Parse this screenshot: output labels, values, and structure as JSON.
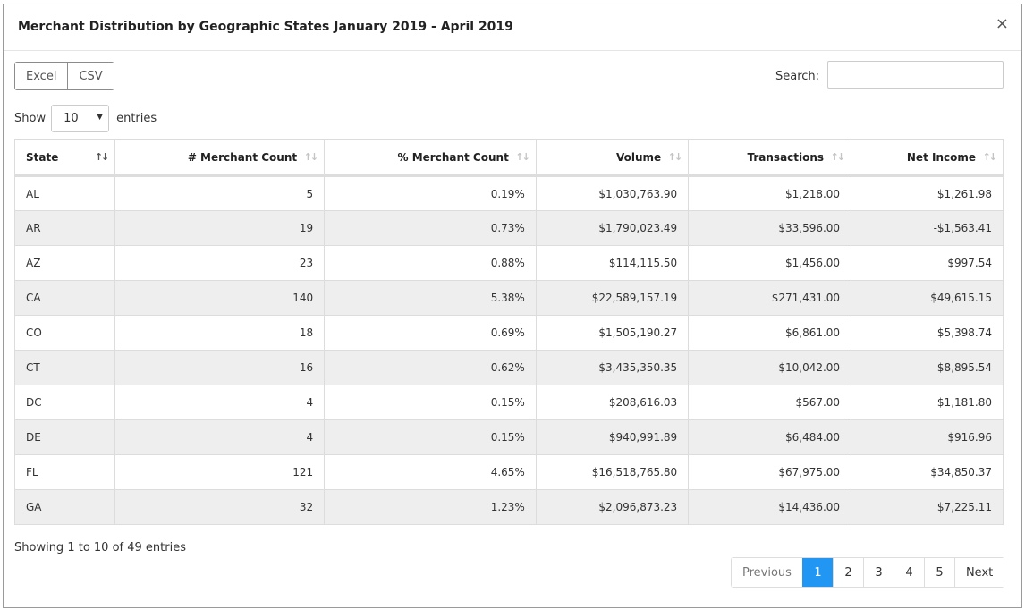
{
  "modal": {
    "title": "Merchant Distribution by Geographic States January 2019 - April 2019",
    "close_symbol": "×"
  },
  "toolbar": {
    "excel_label": "Excel",
    "csv_label": "CSV",
    "search_label": "Search:",
    "search_value": ""
  },
  "length": {
    "show_label": "Show",
    "selected": "10",
    "entries_label": "entries"
  },
  "table": {
    "columns": [
      "State",
      "# Merchant Count",
      "% Merchant Count",
      "Volume",
      "Transactions",
      "Net Income"
    ],
    "rows": [
      [
        "AL",
        "5",
        "0.19%",
        "$1,030,763.90",
        "$1,218.00",
        "$1,261.98"
      ],
      [
        "AR",
        "19",
        "0.73%",
        "$1,790,023.49",
        "$33,596.00",
        "-$1,563.41"
      ],
      [
        "AZ",
        "23",
        "0.88%",
        "$114,115.50",
        "$1,456.00",
        "$997.54"
      ],
      [
        "CA",
        "140",
        "5.38%",
        "$22,589,157.19",
        "$271,431.00",
        "$49,615.15"
      ],
      [
        "CO",
        "18",
        "0.69%",
        "$1,505,190.27",
        "$6,861.00",
        "$5,398.74"
      ],
      [
        "CT",
        "16",
        "0.62%",
        "$3,435,350.35",
        "$10,042.00",
        "$8,895.54"
      ],
      [
        "DC",
        "4",
        "0.15%",
        "$208,616.03",
        "$567.00",
        "$1,181.80"
      ],
      [
        "DE",
        "4",
        "0.15%",
        "$940,991.89",
        "$6,484.00",
        "$916.96"
      ],
      [
        "FL",
        "121",
        "4.65%",
        "$16,518,765.80",
        "$67,975.00",
        "$34,850.37"
      ],
      [
        "GA",
        "32",
        "1.23%",
        "$2,096,873.23",
        "$14,436.00",
        "$7,225.11"
      ]
    ]
  },
  "footer": {
    "info": "Showing 1 to 10 of 49 entries",
    "previous_label": "Previous",
    "next_label": "Next",
    "pages": [
      "1",
      "2",
      "3",
      "4",
      "5"
    ],
    "active_page": "1"
  },
  "colors": {
    "active_page": "#2196f3",
    "even_row": "#eeeeee"
  }
}
